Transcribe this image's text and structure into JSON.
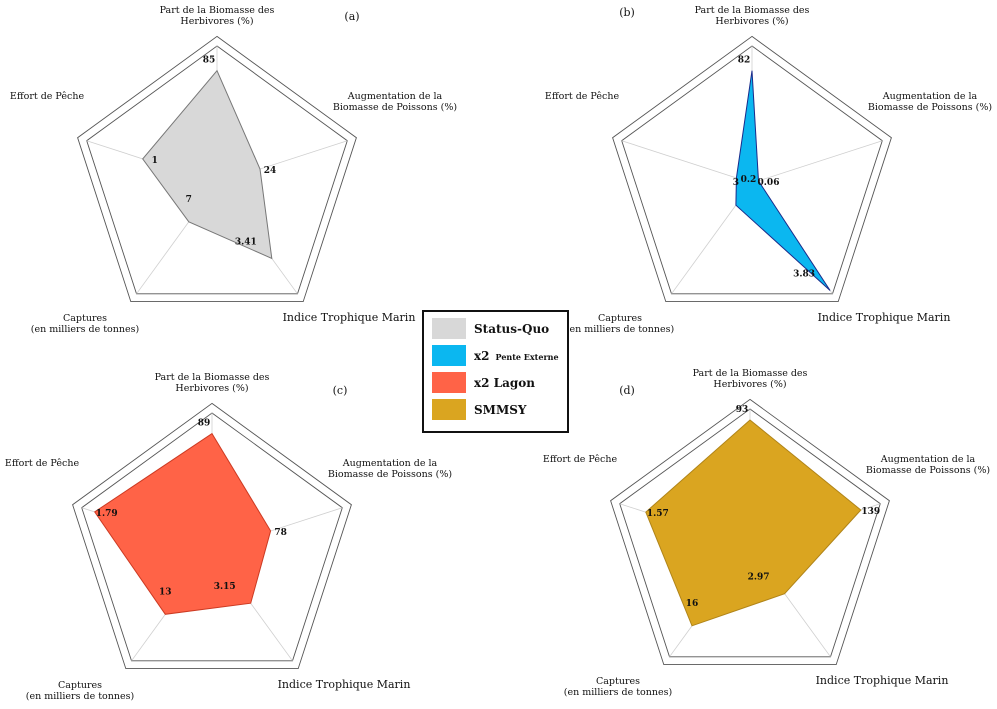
{
  "chart_data": [
    {
      "type": "radar",
      "panel": "(a)",
      "series_key": "status_quo",
      "axes": [
        {
          "label": [
            "Part de la Biomasse des",
            "Herbivores (%)"
          ],
          "value": "85"
        },
        {
          "label": [
            "Augmentation de la",
            "Biomasse de Poissons (%)"
          ],
          "value": "24"
        },
        {
          "label": [
            "Indice Trophique Marin"
          ],
          "value": "3.41"
        },
        {
          "label": [
            "Captures",
            "(en milliers de tonnes)"
          ],
          "value": "7"
        },
        {
          "label": [
            "Effort de Pêche"
          ],
          "value": "1"
        }
      ],
      "normalized": [
        0.82,
        0.33,
        0.68,
        0.35,
        0.57
      ]
    },
    {
      "type": "radar",
      "panel": "(b)",
      "series_key": "x2_pente_externe",
      "axes": [
        {
          "label": [
            "Part de la Biomasse des",
            "Herbivores (%)"
          ],
          "value": "82"
        },
        {
          "label": [
            "Augmentation de la",
            "Biomasse de Poissons (%)"
          ],
          "value": "0.06"
        },
        {
          "label": [
            "Indice Trophique Marin"
          ],
          "value": "3.83"
        },
        {
          "label": [
            "Captures",
            "(en milliers de tonnes)"
          ],
          "value": "3"
        },
        {
          "label": [
            "Effort de Pêche"
          ],
          "value": "0.2"
        }
      ],
      "normalized": [
        0.82,
        0.05,
        0.97,
        0.2,
        0.12
      ]
    },
    {
      "type": "radar",
      "panel": "(c)",
      "series_key": "x2_lagon",
      "axes": [
        {
          "label": [
            "Part de la Biomasse des",
            "Herbivores (%)"
          ],
          "value": "89"
        },
        {
          "label": [
            "Augmentation de la",
            "Biomasse de Poissons (%)"
          ],
          "value": "78"
        },
        {
          "label": [
            "Indice Trophique Marin"
          ],
          "value": "3.15"
        },
        {
          "label": [
            "Captures",
            "(en milliers de tonnes)"
          ],
          "value": "13"
        },
        {
          "label": [
            "Effort de Pêche"
          ],
          "value": "1.79"
        }
      ],
      "normalized": [
        0.85,
        0.45,
        0.48,
        0.58,
        0.9
      ]
    },
    {
      "type": "radar",
      "panel": "(d)",
      "series_key": "smmsy",
      "axes": [
        {
          "label": [
            "Part de la Biomasse des",
            "Herbivores (%)"
          ],
          "value": "93"
        },
        {
          "label": [
            "Augmentation de la",
            "Biomasse de Poissons (%)"
          ],
          "value": "139"
        },
        {
          "label": [
            "Indice Trophique Marin"
          ],
          "value": "2.97"
        },
        {
          "label": [
            "Captures",
            "(en milliers de tonnes)"
          ],
          "value": "16"
        },
        {
          "label": [
            "Effort de Pêche"
          ],
          "value": "1.57"
        }
      ],
      "normalized": [
        0.92,
        0.85,
        0.43,
        0.72,
        0.8
      ]
    }
  ],
  "legend": [
    {
      "key": "status_quo",
      "label": "Status-Quo",
      "suffix": "",
      "color": "#d8d8d8"
    },
    {
      "key": "x2_pente_externe",
      "label": "x2",
      "suffix": "Pente Externe",
      "color": "#0bb7f0"
    },
    {
      "key": "x2_lagon",
      "label": "x2 Lagon",
      "suffix": "",
      "color": "#ff6347"
    },
    {
      "key": "smmsy",
      "label": "SMMSY",
      "suffix": "",
      "color": "#daa520"
    }
  ],
  "series_style": {
    "status_quo": {
      "fill": "#d8d8d8",
      "stroke": "#777777"
    },
    "x2_pente_externe": {
      "fill": "#0bb7f0",
      "stroke": "#1a2a8a"
    },
    "x2_lagon": {
      "fill": "#ff6347",
      "stroke": "#cc3a22"
    },
    "smmsy": {
      "fill": "#daa520",
      "stroke": "#b08418"
    }
  }
}
